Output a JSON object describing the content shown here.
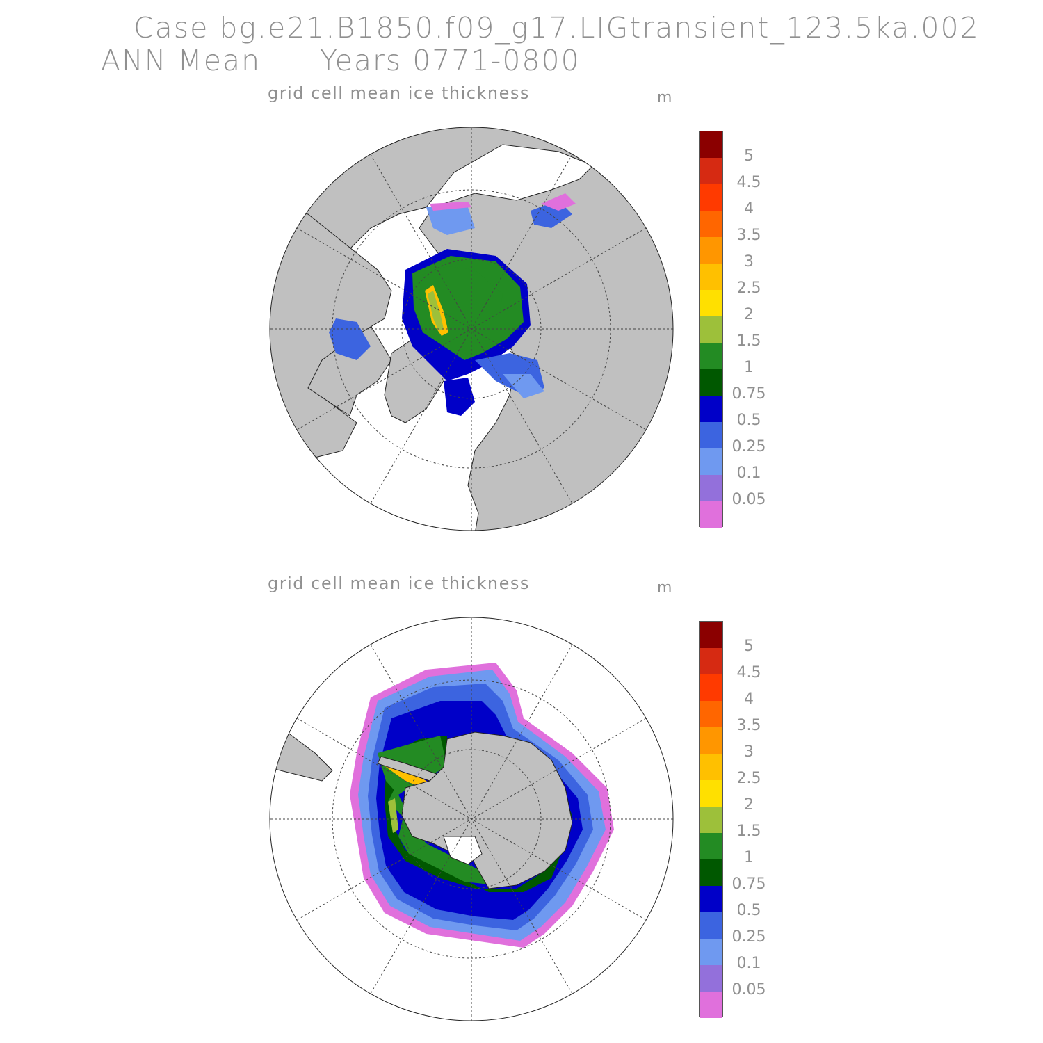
{
  "header": {
    "case_line": "Case bg.e21.B1850.f09_g17.LIGtransient_123.5ka.002",
    "period_label": "ANN Mean",
    "years_label": "Years 0771-0800"
  },
  "legend": {
    "labels": [
      "5",
      "4.5",
      "4",
      "3.5",
      "3",
      "2.5",
      "2",
      "1.5",
      "1",
      "0.75",
      "0.5",
      "0.25",
      "0.1",
      "0.05"
    ],
    "colors_top_to_bottom": [
      "#8b0000",
      "#d62a12",
      "#ff3a00",
      "#ff6600",
      "#ff9600",
      "#ffc000",
      "#ffe000",
      "#9dc03a",
      "#238b23",
      "#005800",
      "#0000c8",
      "#3c64e0",
      "#6f99f0",
      "#9370db",
      "#e070dc"
    ]
  },
  "panels": [
    {
      "name": "arctic",
      "title": "grid cell mean ice thickness",
      "unit": "m",
      "hemisphere": "north"
    },
    {
      "name": "antarctic",
      "title": "grid cell mean ice thickness",
      "unit": "m",
      "hemisphere": "south"
    }
  ]
}
